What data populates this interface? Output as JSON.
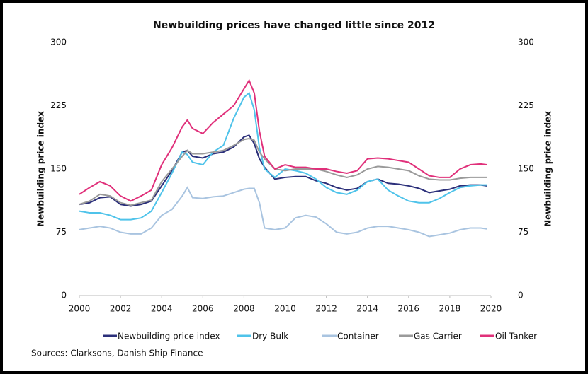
{
  "chart_data": {
    "type": "line",
    "title": "Newbuilding prices have changed little since 2012",
    "ylabel": "Newbuilding price index",
    "y2label": "Newbuilding price index",
    "source": "Sources: Clarksons, Danish Ship Finance",
    "x": [
      2000,
      2000.5,
      2001,
      2001.5,
      2002,
      2002.5,
      2003,
      2003.5,
      2004,
      2004.5,
      2005,
      2005.25,
      2005.5,
      2006,
      2006.5,
      2007,
      2007.5,
      2008,
      2008.25,
      2008.5,
      2008.75,
      2009,
      2009.5,
      2010,
      2010.5,
      2011,
      2011.5,
      2012,
      2012.5,
      2013,
      2013.5,
      2014,
      2014.5,
      2015,
      2015.5,
      2016,
      2016.5,
      2017,
      2017.5,
      2018,
      2018.5,
      2019,
      2019.5,
      2019.8
    ],
    "xlim": [
      2000,
      2020
    ],
    "xticks": [
      2000,
      2002,
      2004,
      2006,
      2008,
      2010,
      2012,
      2014,
      2016,
      2018,
      2020
    ],
    "ylim": [
      0,
      300
    ],
    "yticks": [
      0,
      75,
      150,
      225,
      300
    ],
    "y2lim": [
      0,
      300
    ],
    "y2ticks": [
      0,
      75,
      150,
      225,
      300
    ],
    "series": [
      {
        "name": "Newbuilding price index",
        "color": "#2b2f7a",
        "values": [
          108,
          110,
          116,
          117,
          108,
          106,
          108,
          112,
          130,
          148,
          170,
          172,
          165,
          163,
          168,
          170,
          176,
          188,
          190,
          180,
          162,
          152,
          138,
          140,
          141,
          141,
          136,
          133,
          128,
          125,
          127,
          135,
          138,
          133,
          132,
          130,
          127,
          122,
          124,
          126,
          130,
          131,
          131,
          130
        ]
      },
      {
        "name": "Dry Bulk",
        "color": "#4fc3ea",
        "values": [
          100,
          98,
          98,
          95,
          90,
          90,
          92,
          100,
          122,
          145,
          170,
          167,
          158,
          155,
          170,
          178,
          210,
          235,
          240,
          220,
          175,
          150,
          140,
          150,
          148,
          145,
          138,
          128,
          122,
          120,
          125,
          135,
          138,
          125,
          118,
          112,
          110,
          110,
          115,
          122,
          128,
          130,
          131,
          131
        ]
      },
      {
        "name": "Container",
        "color": "#a9c4e0",
        "values": [
          78,
          80,
          82,
          80,
          75,
          73,
          73,
          80,
          95,
          102,
          118,
          128,
          116,
          115,
          117,
          118,
          122,
          126,
          127,
          127,
          110,
          80,
          78,
          80,
          92,
          95,
          93,
          85,
          75,
          73,
          75,
          80,
          82,
          82,
          80,
          78,
          75,
          70,
          72,
          74,
          78,
          80,
          80,
          79
        ]
      },
      {
        "name": "Gas Carrier",
        "color": "#9a9a9a",
        "values": [
          108,
          112,
          120,
          118,
          110,
          107,
          110,
          113,
          135,
          150,
          165,
          172,
          168,
          168,
          170,
          172,
          178,
          185,
          186,
          184,
          170,
          162,
          150,
          148,
          150,
          150,
          150,
          147,
          143,
          140,
          143,
          150,
          153,
          152,
          150,
          148,
          142,
          138,
          137,
          137,
          139,
          140,
          140,
          140
        ]
      },
      {
        "name": "Oil Tanker",
        "color": "#e0307a",
        "values": [
          120,
          128,
          135,
          130,
          118,
          112,
          118,
          125,
          155,
          175,
          200,
          208,
          198,
          192,
          205,
          215,
          225,
          245,
          255,
          240,
          195,
          165,
          150,
          155,
          152,
          152,
          150,
          150,
          147,
          145,
          148,
          162,
          163,
          162,
          160,
          158,
          150,
          142,
          140,
          140,
          150,
          155,
          156,
          155
        ]
      }
    ]
  }
}
